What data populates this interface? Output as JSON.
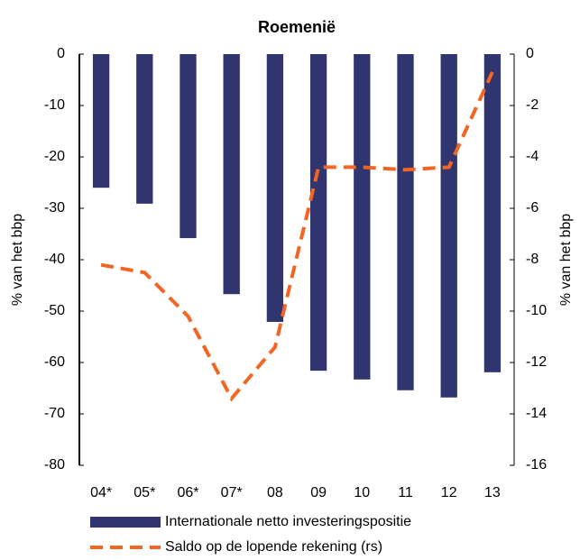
{
  "chart_data": {
    "type": "bar-line",
    "title": "Roemenië",
    "ylabel": "% van het bbp",
    "y2label": "% van het bbp",
    "categories": [
      "04*",
      "05*",
      "06*",
      "07*",
      "08",
      "09",
      "10",
      "11",
      "12",
      "13"
    ],
    "series": [
      {
        "name": "Internationale netto investeringspositie",
        "type": "bar",
        "color": "#30356f",
        "values": [
          -26,
          -29.1,
          -35.8,
          -46.7,
          -52.1,
          -61.6,
          -63.3,
          -65.4,
          -66.8,
          -61.9
        ]
      },
      {
        "name": "Saldo op de lopende rekening (rs)",
        "type": "line",
        "axis": "y2",
        "color": "#f26522",
        "values": [
          -8.2,
          -8.5,
          -10.2,
          -13.4,
          -11.4,
          -4.4,
          -4.4,
          -4.5,
          -4.4,
          -0.7
        ]
      }
    ],
    "ylim": [
      -80,
      0
    ],
    "yticks": [
      0,
      -10,
      -20,
      -30,
      -40,
      -50,
      -60,
      -70,
      -80
    ],
    "y2lim": [
      -16,
      0
    ],
    "y2ticks": [
      0,
      -2,
      -4,
      -6,
      -8,
      -10,
      -12,
      -14,
      -16
    ],
    "legend": "bottom"
  }
}
